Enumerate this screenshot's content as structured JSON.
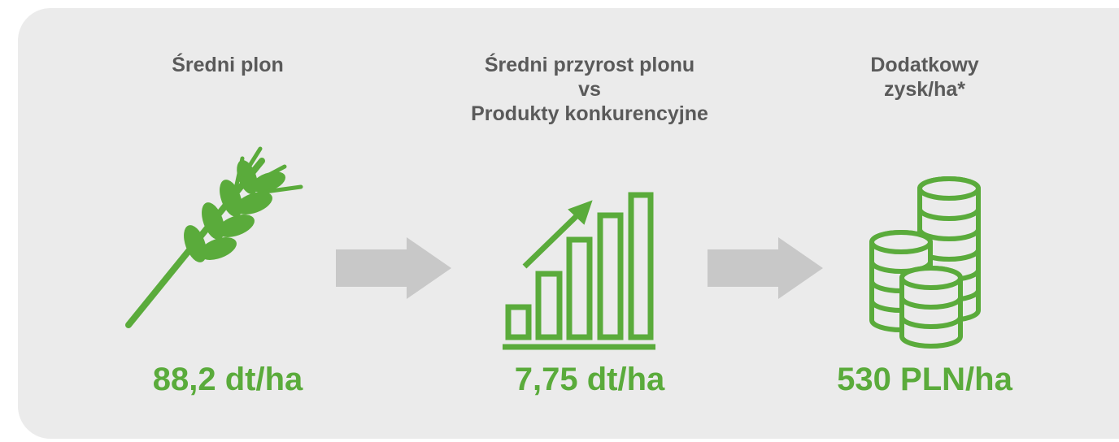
{
  "items": [
    {
      "title_lines": [
        "Średni plon"
      ],
      "value": "88,2 dt/ha"
    },
    {
      "title_lines": [
        "Średni przyrost plonu",
        "vs",
        "Produkty konkurencyjne"
      ],
      "value": "7,75 dt/ha"
    },
    {
      "title_lines": [
        "Dodatkowy",
        "zysk/ha*"
      ],
      "value": "530 PLN/ha"
    }
  ]
}
